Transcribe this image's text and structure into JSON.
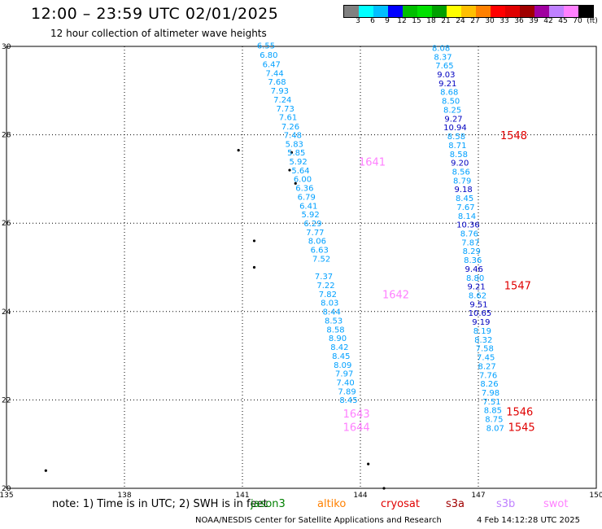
{
  "header": {
    "title": "12:00 – 23:59 UTC 02/01/2025",
    "subtitle": "12 hour collection of altimeter wave heights"
  },
  "colorbar": {
    "colors": [
      "#808080",
      "#00ffff",
      "#00bfff",
      "#0000ff",
      "#00bf00",
      "#00e000",
      "#00a000",
      "#ffff00",
      "#ffbf00",
      "#ff8000",
      "#ff0000",
      "#e00000",
      "#a00000",
      "#a000a0",
      "#bf80ff",
      "#ff80ff",
      "#000000"
    ],
    "labels": [
      "3",
      "6",
      "9",
      "12",
      "15",
      "18",
      "21",
      "24",
      "27",
      "30",
      "33",
      "36",
      "39",
      "42",
      "45",
      "70",
      "(ft)"
    ]
  },
  "axes": {
    "x_ticks": [
      "135",
      "138",
      "141",
      "144",
      "147",
      "150"
    ],
    "y_ticks": [
      "30",
      "28",
      "26",
      "24",
      "22",
      "20"
    ]
  },
  "chart_data": {
    "type": "scatter",
    "xlim": [
      135,
      150
    ],
    "ylim": [
      20,
      30
    ],
    "grid": true,
    "tracks": [
      {
        "color": "#00a0ff",
        "points": [
          {
            "lon": 141.6,
            "lat": 29.95,
            "val": "6.55"
          },
          {
            "lon": 141.67,
            "lat": 29.74,
            "val": "6.80"
          },
          {
            "lon": 141.74,
            "lat": 29.53,
            "val": "6.47"
          },
          {
            "lon": 141.82,
            "lat": 29.33,
            "val": "7.44"
          },
          {
            "lon": 141.88,
            "lat": 29.13,
            "val": "7.68"
          },
          {
            "lon": 141.95,
            "lat": 28.93,
            "val": "7.93"
          },
          {
            "lon": 142.02,
            "lat": 28.73,
            "val": "7.24"
          },
          {
            "lon": 142.09,
            "lat": 28.53,
            "val": "7.73"
          },
          {
            "lon": 142.16,
            "lat": 28.33,
            "val": "7.61"
          },
          {
            "lon": 142.22,
            "lat": 28.12,
            "val": "7.26"
          },
          {
            "lon": 142.28,
            "lat": 27.93,
            "val": "7.48"
          },
          {
            "lon": 142.32,
            "lat": 27.73,
            "val": "5.83"
          },
          {
            "lon": 142.37,
            "lat": 27.53,
            "val": "5.85"
          },
          {
            "lon": 142.42,
            "lat": 27.33,
            "val": "5.92"
          },
          {
            "lon": 142.48,
            "lat": 27.13,
            "val": "5.64"
          },
          {
            "lon": 142.53,
            "lat": 26.93,
            "val": "6.00"
          },
          {
            "lon": 142.58,
            "lat": 26.73,
            "val": "6.36"
          },
          {
            "lon": 142.63,
            "lat": 26.53,
            "val": "6.79"
          },
          {
            "lon": 142.68,
            "lat": 26.33,
            "val": "6.41"
          },
          {
            "lon": 142.73,
            "lat": 26.13,
            "val": "5.92"
          },
          {
            "lon": 142.79,
            "lat": 25.93,
            "val": "6.29"
          },
          {
            "lon": 142.85,
            "lat": 25.73,
            "val": "7.77"
          },
          {
            "lon": 142.9,
            "lat": 25.53,
            "val": "8.06"
          },
          {
            "lon": 142.96,
            "lat": 25.33,
            "val": "6.63"
          },
          {
            "lon": 143.01,
            "lat": 25.13,
            "val": "7.52"
          },
          {
            "lon": 143.07,
            "lat": 24.73,
            "val": "7.37"
          },
          {
            "lon": 143.12,
            "lat": 24.53,
            "val": "7.22"
          },
          {
            "lon": 143.17,
            "lat": 24.33,
            "val": "7.82"
          },
          {
            "lon": 143.22,
            "lat": 24.13,
            "val": "8.03"
          },
          {
            "lon": 143.27,
            "lat": 23.93,
            "val": "8.44"
          },
          {
            "lon": 143.32,
            "lat": 23.73,
            "val": "8.53"
          },
          {
            "lon": 143.37,
            "lat": 23.53,
            "val": "8.58"
          },
          {
            "lon": 143.42,
            "lat": 23.33,
            "val": "8.90"
          },
          {
            "lon": 143.47,
            "lat": 23.13,
            "val": "8.42"
          },
          {
            "lon": 143.51,
            "lat": 22.93,
            "val": "8.45"
          },
          {
            "lon": 143.55,
            "lat": 22.73,
            "val": "8.09"
          },
          {
            "lon": 143.59,
            "lat": 22.53,
            "val": "7.97"
          },
          {
            "lon": 143.62,
            "lat": 22.33,
            "val": "7.40"
          },
          {
            "lon": 143.66,
            "lat": 22.13,
            "val": "7.89"
          },
          {
            "lon": 143.7,
            "lat": 21.93,
            "val": "8.45"
          }
        ]
      },
      {
        "color": "#00a0ff",
        "points": [
          {
            "lon": 146.05,
            "lat": 29.9,
            "val": "8.08"
          },
          {
            "lon": 146.1,
            "lat": 29.7,
            "val": "8.37"
          },
          {
            "lon": 146.14,
            "lat": 29.5,
            "val": "7.65"
          },
          {
            "lon": 146.18,
            "lat": 29.3,
            "val": "9.03"
          },
          {
            "lon": 146.22,
            "lat": 29.1,
            "val": "9.21"
          },
          {
            "lon": 146.26,
            "lat": 28.9,
            "val": "8.68"
          },
          {
            "lon": 146.3,
            "lat": 28.7,
            "val": "8.50"
          },
          {
            "lon": 146.34,
            "lat": 28.5,
            "val": "8.25"
          },
          {
            "lon": 146.37,
            "lat": 28.3,
            "val": "9.27"
          },
          {
            "lon": 146.41,
            "lat": 28.1,
            "val": "10.94"
          },
          {
            "lon": 146.44,
            "lat": 27.9,
            "val": "8.58"
          },
          {
            "lon": 146.47,
            "lat": 27.7,
            "val": "8.71"
          },
          {
            "lon": 146.5,
            "lat": 27.5,
            "val": "8.58"
          },
          {
            "lon": 146.53,
            "lat": 27.3,
            "val": "9.20"
          },
          {
            "lon": 146.56,
            "lat": 27.1,
            "val": "8.56"
          },
          {
            "lon": 146.59,
            "lat": 26.9,
            "val": "8.79"
          },
          {
            "lon": 146.62,
            "lat": 26.7,
            "val": "9.18"
          },
          {
            "lon": 146.65,
            "lat": 26.5,
            "val": "8.45"
          },
          {
            "lon": 146.68,
            "lat": 26.3,
            "val": "7.67"
          },
          {
            "lon": 146.71,
            "lat": 26.1,
            "val": "8.14"
          },
          {
            "lon": 146.74,
            "lat": 25.9,
            "val": "10.36"
          },
          {
            "lon": 146.77,
            "lat": 25.7,
            "val": "8.76"
          },
          {
            "lon": 146.8,
            "lat": 25.5,
            "val": "7.87"
          },
          {
            "lon": 146.83,
            "lat": 25.3,
            "val": "8.29"
          },
          {
            "lon": 146.86,
            "lat": 25.1,
            "val": "8.36"
          },
          {
            "lon": 146.89,
            "lat": 24.9,
            "val": "9.46"
          },
          {
            "lon": 146.92,
            "lat": 24.7,
            "val": "8.80"
          },
          {
            "lon": 146.95,
            "lat": 24.5,
            "val": "9.21"
          },
          {
            "lon": 146.98,
            "lat": 24.3,
            "val": "8.62"
          },
          {
            "lon": 147.01,
            "lat": 24.1,
            "val": "9.51"
          },
          {
            "lon": 147.04,
            "lat": 23.9,
            "val": "10.65"
          },
          {
            "lon": 147.07,
            "lat": 23.7,
            "val": "9.19"
          },
          {
            "lon": 147.1,
            "lat": 23.5,
            "val": "8.19"
          },
          {
            "lon": 147.13,
            "lat": 23.3,
            "val": "8.32"
          },
          {
            "lon": 147.16,
            "lat": 23.1,
            "val": "7.58"
          },
          {
            "lon": 147.19,
            "lat": 22.9,
            "val": "7.45"
          },
          {
            "lon": 147.22,
            "lat": 22.7,
            "val": "8.27"
          },
          {
            "lon": 147.25,
            "lat": 22.5,
            "val": "7.76"
          },
          {
            "lon": 147.28,
            "lat": 22.3,
            "val": "8.26"
          },
          {
            "lon": 147.31,
            "lat": 22.1,
            "val": "7.98"
          },
          {
            "lon": 147.34,
            "lat": 21.9,
            "val": "7.51"
          },
          {
            "lon": 147.37,
            "lat": 21.7,
            "val": "8.85"
          },
          {
            "lon": 147.4,
            "lat": 21.5,
            "val": "8.75"
          },
          {
            "lon": 147.43,
            "lat": 21.3,
            "val": "8.07"
          }
        ]
      }
    ],
    "pass_labels": [
      {
        "text": "1641",
        "lon": 144.3,
        "lat": 27.3,
        "color": "#ff80ff"
      },
      {
        "text": "1642",
        "lon": 144.9,
        "lat": 24.3,
        "color": "#ff80ff"
      },
      {
        "text": "1643",
        "lon": 143.9,
        "lat": 21.6,
        "color": "#ff80ff"
      },
      {
        "text": "1644",
        "lon": 143.9,
        "lat": 21.3,
        "color": "#ff80ff"
      },
      {
        "text": "1548",
        "lon": 147.9,
        "lat": 27.9,
        "color": "#e00000"
      },
      {
        "text": "1547",
        "lon": 148.0,
        "lat": 24.5,
        "color": "#e00000"
      },
      {
        "text": "1546",
        "lon": 148.05,
        "lat": 21.65,
        "color": "#e00000"
      },
      {
        "text": "1545",
        "lon": 148.1,
        "lat": 21.3,
        "color": "#e00000"
      }
    ],
    "islands": [
      {
        "lon": 140.9,
        "lat": 27.65
      },
      {
        "lon": 142.25,
        "lat": 27.6
      },
      {
        "lon": 142.2,
        "lat": 27.2
      },
      {
        "lon": 142.35,
        "lat": 26.9
      },
      {
        "lon": 141.3,
        "lat": 25.6
      },
      {
        "lon": 141.3,
        "lat": 25.0
      },
      {
        "lon": 144.2,
        "lat": 20.55
      },
      {
        "lon": 144.6,
        "lat": 20.0
      },
      {
        "lon": 136.0,
        "lat": 20.4
      }
    ]
  },
  "footer": {
    "note": "note: 1) Time is in UTC; 2) SWH is in feet",
    "satellites": [
      {
        "name": "jason3",
        "color": "#008000"
      },
      {
        "name": "altiko",
        "color": "#ff8000"
      },
      {
        "name": "cryosat",
        "color": "#e00000"
      },
      {
        "name": "s3a",
        "color": "#a00000"
      },
      {
        "name": "s3b",
        "color": "#bf80ff"
      },
      {
        "name": "swot",
        "color": "#ff80ff"
      }
    ],
    "credit": "NOAA/NESDIS Center for Satellite Applications and Research",
    "generated": "4 Feb 14:12:28 UTC 2025"
  }
}
